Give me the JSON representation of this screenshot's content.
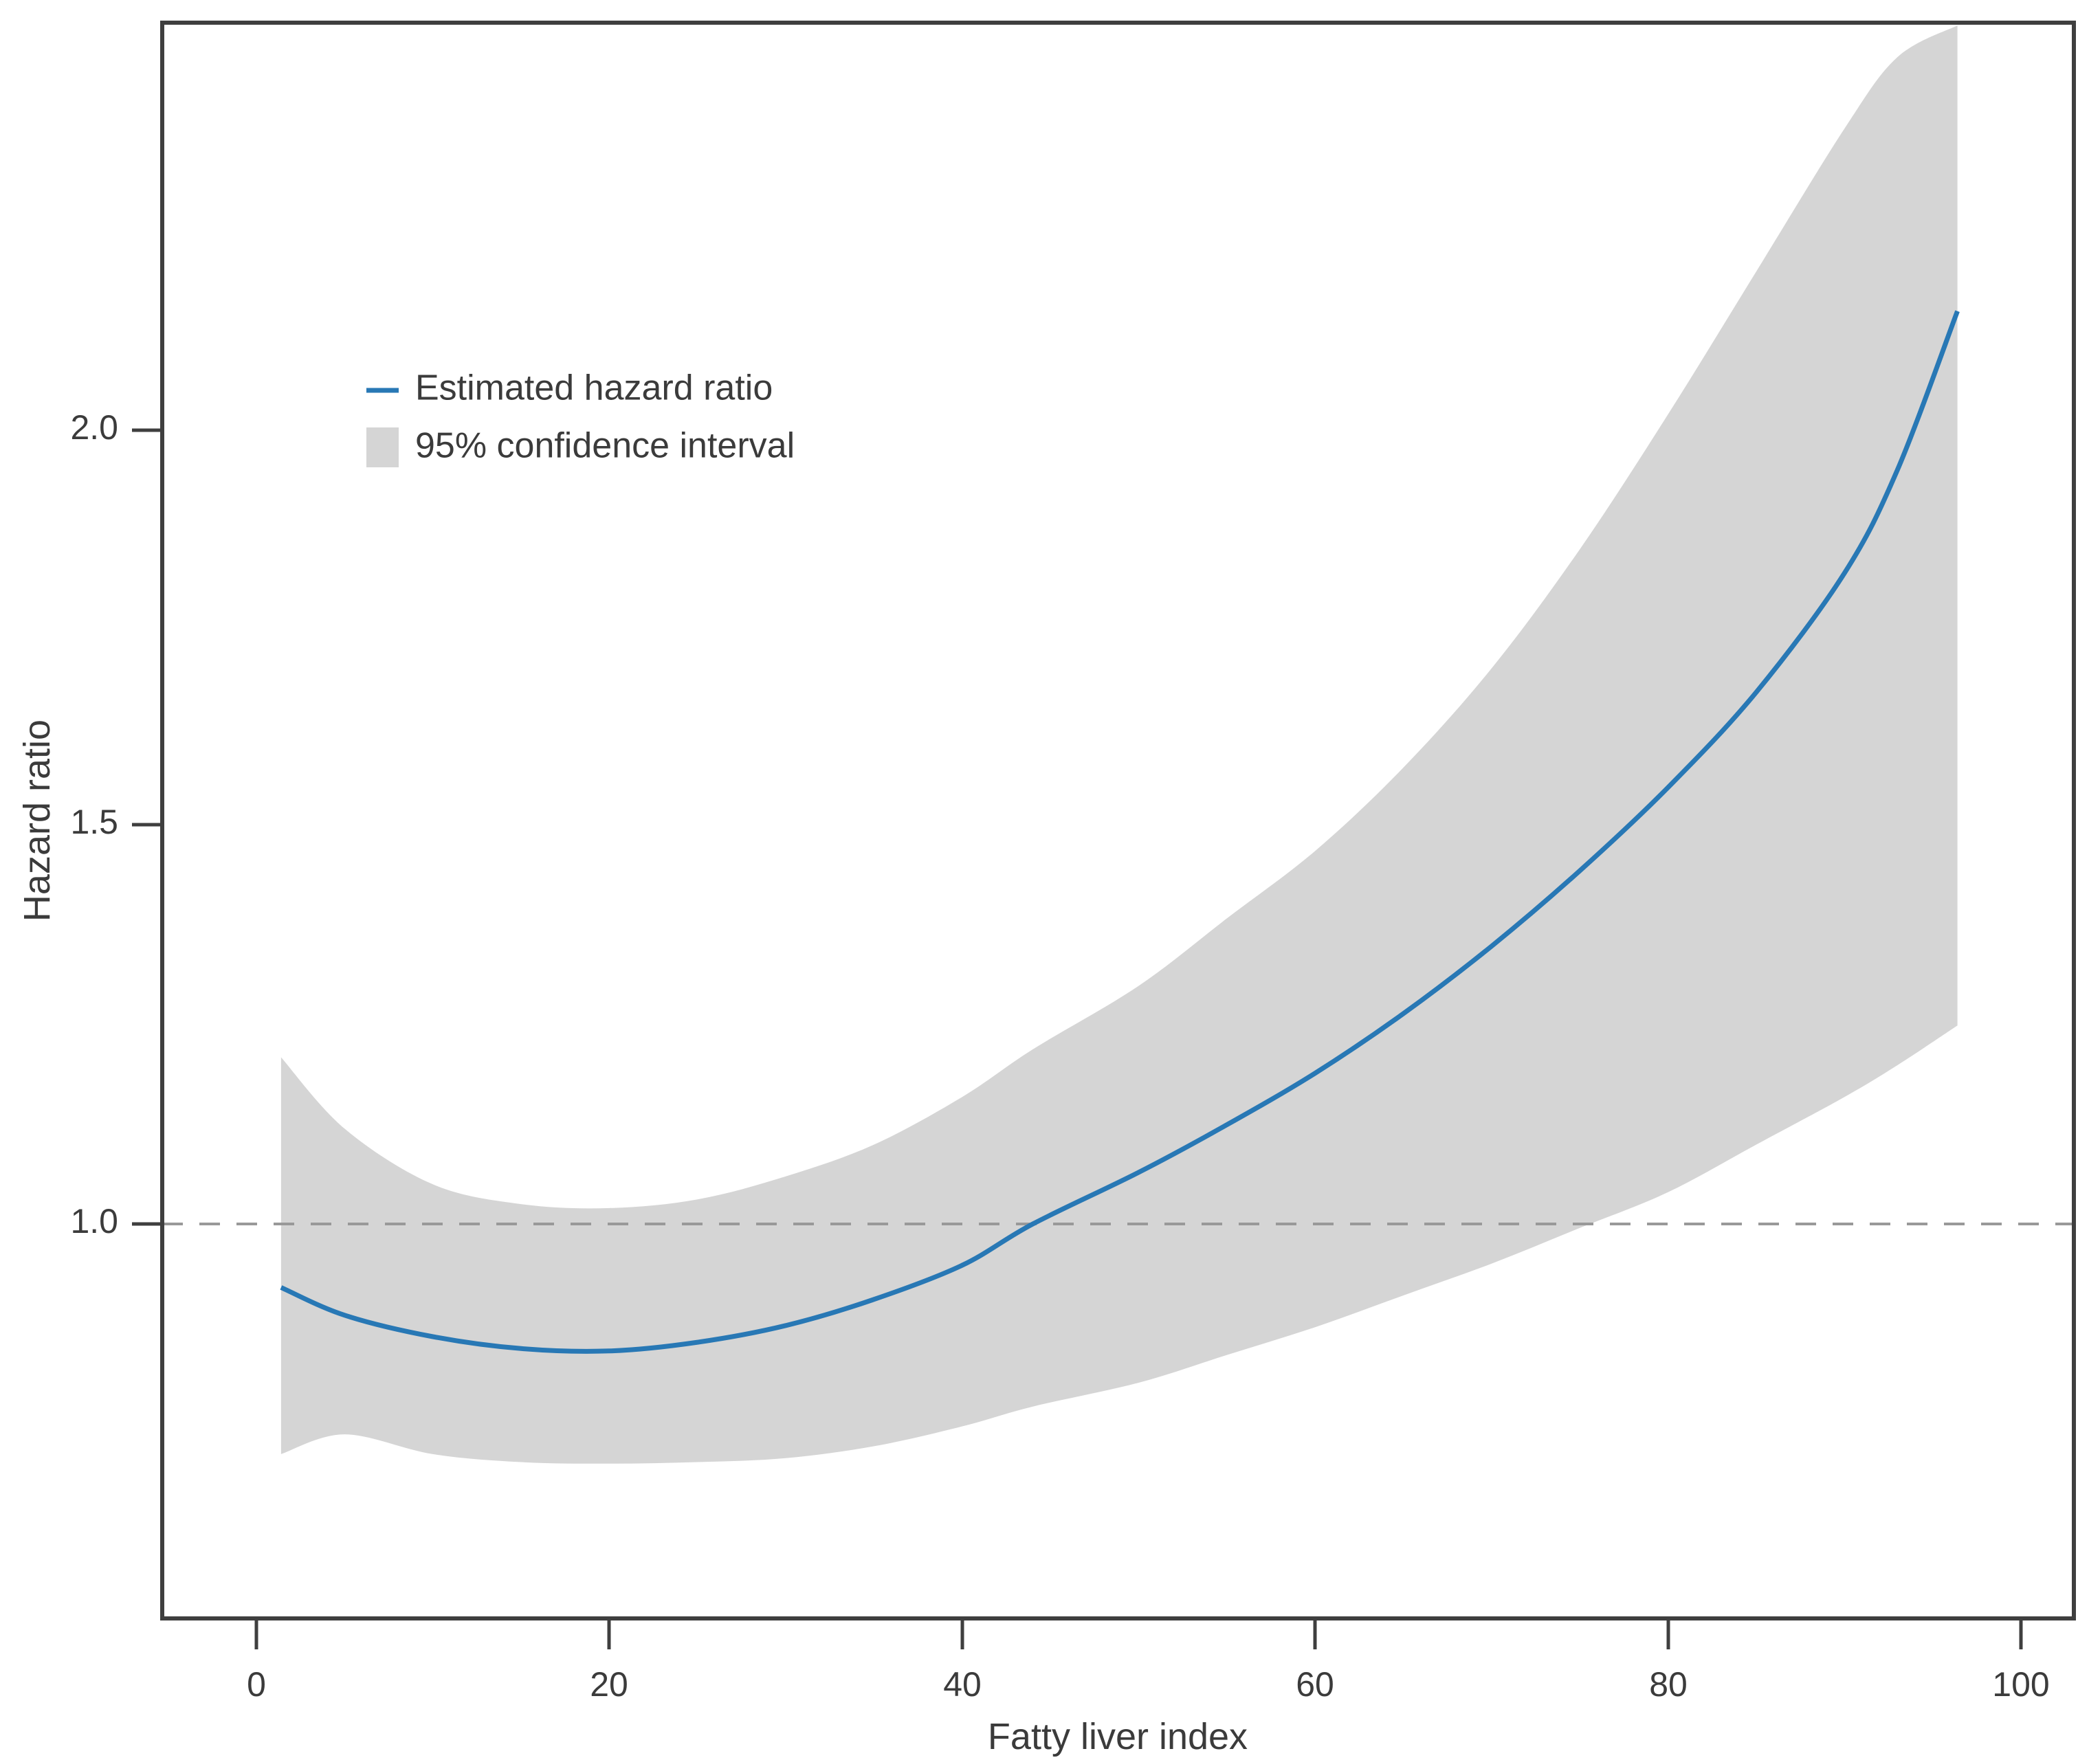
{
  "figure": {
    "background": "#ffffff",
    "border_color": "#3f3f3f"
  },
  "axes": {
    "x": {
      "label": "Fatty liver index",
      "ticks": [
        "0",
        "20",
        "40",
        "60",
        "80",
        "100"
      ],
      "tick_values": [
        0,
        20,
        40,
        60,
        80,
        100
      ]
    },
    "y": {
      "label": "Hazard ratio",
      "ticks": [
        "2.0",
        "1.5",
        "1.0"
      ],
      "tick_values": [
        2.0,
        1.5,
        1.0
      ]
    }
  },
  "legend": {
    "items": [
      {
        "label": "Estimated hazard ratio",
        "swatch": "line",
        "color": "#2878b5"
      },
      {
        "label": "95% confidence interval",
        "swatch": "box",
        "color": "#d5d5d5"
      }
    ]
  },
  "colors": {
    "curve": "#2878b5",
    "ci_band": "#d5d5d5",
    "reference_dash": "#999999",
    "axis": "#3f3f3f",
    "text": "#3b3b3b"
  },
  "chart_data": {
    "type": "line",
    "title": "",
    "xlabel": "Fatty liver index",
    "ylabel": "Hazard ratio",
    "xlim": [
      -5.3,
      103
    ],
    "ylim": [
      0.5,
      2.51
    ],
    "grid": false,
    "legend_position": "upper-left-inside",
    "reference_line_y": 1.0,
    "x": [
      1.4,
      5,
      10,
      15,
      20,
      25,
      30,
      35,
      40,
      44,
      50,
      55,
      60,
      65,
      70,
      75,
      80,
      85,
      90,
      93,
      96.4
    ],
    "series": [
      {
        "name": "Estimated hazard ratio",
        "values": [
          0.92,
          0.885,
          0.858,
          0.843,
          0.84,
          0.851,
          0.872,
          0.905,
          0.948,
          1.0,
          1.065,
          1.125,
          1.19,
          1.265,
          1.35,
          1.445,
          1.55,
          1.67,
          1.82,
          1.95,
          2.15
        ]
      },
      {
        "name": "95% CI upper",
        "values": [
          1.21,
          1.12,
          1.05,
          1.025,
          1.02,
          1.031,
          1.06,
          1.1,
          1.16,
          1.22,
          1.3,
          1.385,
          1.47,
          1.575,
          1.7,
          1.85,
          2.02,
          2.2,
          2.38,
          2.47,
          2.51
        ]
      },
      {
        "name": "95% CI lower",
        "values": [
          0.71,
          0.735,
          0.71,
          0.7,
          0.698,
          0.7,
          0.705,
          0.72,
          0.745,
          0.77,
          0.8,
          0.835,
          0.87,
          0.91,
          0.95,
          0.995,
          1.04,
          1.1,
          1.16,
          1.2,
          1.25
        ]
      }
    ],
    "annotations": {
      "curve_crosses_reference_at_x": 44,
      "curve_minimum": {
        "x": 17,
        "hazard_ratio": 0.84
      }
    }
  }
}
